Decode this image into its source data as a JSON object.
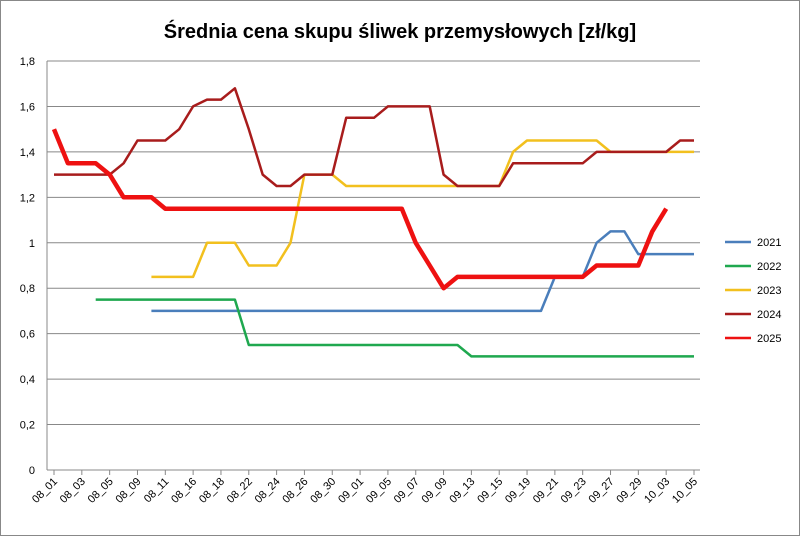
{
  "chart_data": {
    "type": "line",
    "title": "Średnia cena skupu śliwek przemysłowych [zł/kg]",
    "categories": [
      "08_01",
      null,
      "08_03",
      null,
      "08_05",
      null,
      "08_09",
      null,
      "08_11",
      null,
      "08_16",
      null,
      "08_18",
      null,
      "08_22",
      null,
      "08_24",
      null,
      "08_26",
      null,
      "08_30",
      null,
      "09_01",
      null,
      "09_05",
      null,
      "09_07",
      null,
      "09_09",
      null,
      "09_13",
      null,
      "09_15",
      null,
      "09_19",
      null,
      "09_21",
      null,
      "09_23",
      null,
      "09_27",
      null,
      "09_29",
      null,
      "10_03",
      null,
      "10_05"
    ],
    "series": [
      {
        "name": "2021",
        "color": "#4a7ebb",
        "width": 2.5,
        "values": [
          null,
          null,
          null,
          null,
          null,
          null,
          null,
          0.7,
          0.7,
          0.7,
          0.7,
          0.7,
          0.7,
          0.7,
          0.7,
          0.7,
          0.7,
          0.7,
          0.7,
          0.7,
          0.7,
          0.7,
          0.7,
          0.7,
          0.7,
          0.7,
          0.7,
          0.7,
          0.7,
          0.7,
          0.7,
          0.7,
          0.7,
          0.7,
          0.7,
          0.7,
          0.85,
          0.85,
          0.85,
          1.0,
          1.05,
          1.05,
          0.95,
          0.95,
          0.95,
          0.95,
          0.95
        ]
      },
      {
        "name": "2022",
        "color": "#1fa84f",
        "width": 2.5,
        "values": [
          null,
          null,
          null,
          0.75,
          0.75,
          0.75,
          0.75,
          0.75,
          0.75,
          0.75,
          0.75,
          0.75,
          0.75,
          0.75,
          0.55,
          0.55,
          0.55,
          0.55,
          0.55,
          0.55,
          0.55,
          0.55,
          0.55,
          0.55,
          0.55,
          0.55,
          0.55,
          0.55,
          0.55,
          0.55,
          0.5,
          0.5,
          0.5,
          0.5,
          0.5,
          0.5,
          0.5,
          0.5,
          0.5,
          0.5,
          0.5,
          0.5,
          0.5,
          0.5,
          0.5,
          0.5,
          0.5
        ]
      },
      {
        "name": "2023",
        "color": "#f2c01e",
        "width": 2.5,
        "values": [
          null,
          null,
          null,
          null,
          null,
          null,
          null,
          0.85,
          0.85,
          0.85,
          0.85,
          1.0,
          1.0,
          1.0,
          0.9,
          0.9,
          0.9,
          1.0,
          1.3,
          1.3,
          1.3,
          1.25,
          1.25,
          1.25,
          1.25,
          1.25,
          1.25,
          1.25,
          1.25,
          1.25,
          1.25,
          1.25,
          1.25,
          1.4,
          1.45,
          1.45,
          1.45,
          1.45,
          1.45,
          1.45,
          1.4,
          1.4,
          1.4,
          1.4,
          1.4,
          1.4,
          1.4
        ]
      },
      {
        "name": "2024",
        "color": "#a81c1c",
        "width": 2.5,
        "values": [
          1.3,
          1.3,
          1.3,
          1.3,
          1.3,
          1.35,
          1.45,
          1.45,
          1.45,
          1.5,
          1.6,
          1.63,
          1.63,
          1.68,
          1.5,
          1.3,
          1.25,
          1.25,
          1.3,
          1.3,
          1.3,
          1.55,
          1.55,
          1.55,
          1.6,
          1.6,
          1.6,
          1.6,
          1.3,
          1.25,
          1.25,
          1.25,
          1.25,
          1.35,
          1.35,
          1.35,
          1.35,
          1.35,
          1.35,
          1.4,
          1.4,
          1.4,
          1.4,
          1.4,
          1.4,
          1.45,
          1.45
        ]
      },
      {
        "name": "2025",
        "color": "#ee1111",
        "width": 4.5,
        "values": [
          1.5,
          1.35,
          1.35,
          1.35,
          1.3,
          1.2,
          1.2,
          1.2,
          1.15,
          1.15,
          1.15,
          1.15,
          1.15,
          1.15,
          1.15,
          1.15,
          1.15,
          1.15,
          1.15,
          1.15,
          1.15,
          1.15,
          1.15,
          1.15,
          1.15,
          1.15,
          1.0,
          0.9,
          0.8,
          0.85,
          0.85,
          0.85,
          0.85,
          0.85,
          0.85,
          0.85,
          0.85,
          0.85,
          0.85,
          0.9,
          0.9,
          0.9,
          0.9,
          1.05,
          1.15,
          null,
          null
        ]
      }
    ],
    "ylim": [
      0,
      1.8
    ],
    "yticks": [
      0,
      {
        "value": 0.2,
        "label": "0,2"
      },
      {
        "value": 0.4,
        "label": "0,4"
      },
      {
        "value": 0.6,
        "label": "0,6"
      },
      {
        "value": 0.8,
        "label": "0,8"
      },
      1,
      {
        "value": 1.2,
        "label": "1,2"
      },
      {
        "value": 1.4,
        "label": "1,4"
      },
      {
        "value": 1.6,
        "label": "1,6"
      },
      {
        "value": 1.8,
        "label": "1,8"
      }
    ],
    "grid": true,
    "legend": "right"
  }
}
